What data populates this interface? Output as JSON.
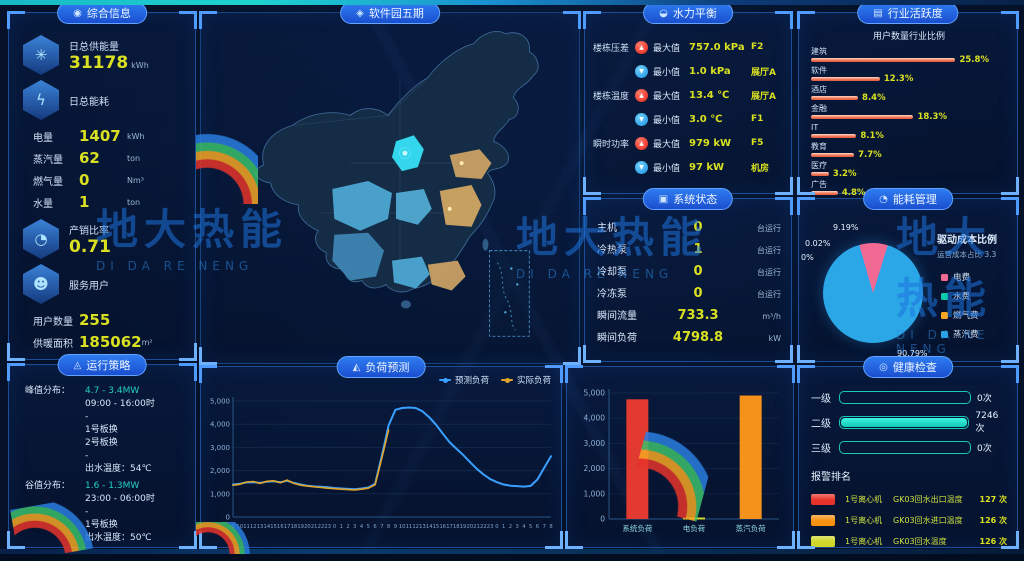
{
  "watermark": {
    "cn": "地大热能",
    "en": "DI DA RE NENG"
  },
  "colors": {
    "accent_yellow": "#d9e021",
    "accent_cyan": "#23d0c4",
    "panel_border": "#1c4d96",
    "max_red": "#e02318",
    "min_blue": "#1e8fe0",
    "bar_salmon": "#f0795a"
  },
  "panels": {
    "summary": {
      "title": "综合信息",
      "icon": "◉",
      "supply": {
        "label": "日总供能量",
        "value": "31178",
        "unit": "kWh"
      },
      "consume_label": "日总能耗",
      "consume_rows": [
        {
          "label": "电量",
          "value": "1407",
          "unit": "kWh"
        },
        {
          "label": "蒸汽量",
          "value": "62",
          "unit": "ton"
        },
        {
          "label": "燃气量",
          "value": "0",
          "unit": "Nm³"
        },
        {
          "label": "水量",
          "value": "1",
          "unit": "ton"
        }
      ],
      "ratio": {
        "label": "产销比率",
        "value": "0.71"
      },
      "users_label": "服务用户",
      "user_rows": [
        {
          "label": "用户数量",
          "value": "255",
          "unit": ""
        },
        {
          "label": "供暖面积",
          "value": "185062",
          "unit": "m²"
        }
      ]
    },
    "strategy": {
      "title": "运行策略",
      "icon": "◬",
      "peak": {
        "label": "峰值分布：",
        "range": "4.7 - 3.4MW",
        "lines": [
          "09:00 - 16:00时",
          "-",
          "1号板换",
          "2号板换",
          "-",
          "出水温度：54℃"
        ]
      },
      "valley": {
        "label": "谷值分布：",
        "range": "1.6 - 1.3MW",
        "lines": [
          "23:00 - 06:00时",
          "-",
          "1号板换",
          "出水温度：50℃"
        ]
      }
    },
    "map": {
      "title": "软件园五期",
      "icon": "◈"
    },
    "forecast": {
      "title": "负荷预测",
      "icon": "◭"
    },
    "hydraulic": {
      "title": "水力平衡",
      "icon": "◒",
      "rows": [
        {
          "group": "楼栋压差",
          "type": "max",
          "label": "最大值",
          "value": "757.0 kPa",
          "tag": "F2"
        },
        {
          "group": "",
          "type": "min",
          "label": "最小值",
          "value": "1.0 kPa",
          "tag": "展厅A"
        },
        {
          "group": "楼栋温度",
          "type": "max",
          "label": "最大值",
          "value": "13.4 ℃",
          "tag": "展厅A"
        },
        {
          "group": "",
          "type": "min",
          "label": "最小值",
          "value": "3.0 ℃",
          "tag": "F1"
        },
        {
          "group": "瞬时功率",
          "type": "max",
          "label": "最大值",
          "value": "979 kW",
          "tag": "F5"
        },
        {
          "group": "",
          "type": "min",
          "label": "最小值",
          "value": "97 kW",
          "tag": "机房"
        }
      ]
    },
    "system": {
      "title": "系统状态",
      "icon": "▣",
      "rows": [
        {
          "label": "主机",
          "value": "0",
          "unit": "台运行"
        },
        {
          "label": "冷热泵",
          "value": "1",
          "unit": "台运行"
        },
        {
          "label": "冷却泵",
          "value": "0",
          "unit": "台运行"
        },
        {
          "label": "冷冻泵",
          "value": "0",
          "unit": "台运行"
        },
        {
          "label": "瞬间流量",
          "value": "733.3",
          "unit": "m³/h"
        },
        {
          "label": "瞬间负荷",
          "value": "4798.8",
          "unit": "kW"
        }
      ]
    },
    "industry": {
      "title": "行业活跃度",
      "icon": "▤",
      "subtitle": "用户数量行业比例"
    },
    "energy_cost": {
      "title": "能耗管理",
      "icon": "◔",
      "center_title": "驱动成本比例",
      "center_sub": "运营成本占比 3.3"
    },
    "health": {
      "title": "健康检查",
      "icon": "◎",
      "levels": [
        {
          "label": "一级",
          "value": "0次",
          "pct": 0
        },
        {
          "label": "二级",
          "value": "7246次",
          "pct": 100
        },
        {
          "label": "三级",
          "value": "0次",
          "pct": 0
        }
      ],
      "alarm_title": "报警排名",
      "alarms": [
        {
          "rank_color": "#e8332a",
          "device": "1号离心机",
          "point": "GK03回水出口温度",
          "count": "127 次"
        },
        {
          "rank_color": "#f5910f",
          "device": "1号离心机",
          "point": "GK03回水进口温度",
          "count": "126 次"
        },
        {
          "rank_color": "#cfd628",
          "device": "1号离心机",
          "point": "GK03回水温度",
          "count": "126 次"
        }
      ]
    }
  },
  "chart_data": [
    {
      "id": "industry",
      "type": "bar",
      "orientation": "horizontal",
      "title": "行业活跃度",
      "subtitle": "用户数量行业比例",
      "unit": "%",
      "xlim": [
        0,
        30
      ],
      "categories": [
        "建筑",
        "软件",
        "酒店",
        "金融",
        "IT",
        "教育",
        "医疗",
        "广告"
      ],
      "values": [
        25.8,
        12.3,
        8.4,
        18.3,
        8.1,
        7.7,
        3.2,
        4.8
      ]
    },
    {
      "id": "energy_cost",
      "type": "pie",
      "title": "能耗管理",
      "slices": [
        {
          "label": "电费",
          "value": 9.19,
          "color": "#f06a93"
        },
        {
          "label": "水费",
          "value": 0.02,
          "color": "#0cc9a7"
        },
        {
          "label": "燃气费",
          "value": 0,
          "color": "#f5a623"
        },
        {
          "label": "蒸汽费",
          "value": 90.79,
          "color": "#2ba7e8"
        }
      ],
      "annotations": [
        "9.19%",
        "0.02%",
        "0%",
        "90.79%"
      ],
      "legend_position": "right"
    },
    {
      "id": "forecast",
      "type": "line",
      "title": "负荷预测",
      "ylim": [
        0,
        5000
      ],
      "yticks": [
        0,
        1000,
        2000,
        3000,
        4000,
        5000
      ],
      "x": [
        "9",
        "10",
        "11",
        "12",
        "13",
        "14",
        "15",
        "16",
        "17",
        "18",
        "19",
        "20",
        "21",
        "22",
        "23",
        "0",
        "1",
        "2",
        "3",
        "4",
        "5",
        "6",
        "7",
        "8",
        "9",
        "10",
        "11",
        "12",
        "13",
        "14",
        "15",
        "16",
        "17",
        "18",
        "19",
        "20",
        "21",
        "22",
        "23",
        "0",
        "1",
        "2",
        "3",
        "4",
        "5",
        "6",
        "7",
        "8"
      ],
      "series": [
        {
          "name": "预测负荷",
          "color": "#3aa0ff",
          "values": [
            1400,
            1430,
            1490,
            1500,
            1470,
            1520,
            1540,
            1500,
            1560,
            1470,
            1400,
            1350,
            1320,
            1300,
            1280,
            1250,
            1230,
            1210,
            1200,
            1230,
            1270,
            1430,
            2650,
            3950,
            4620,
            4700,
            4720,
            4700,
            4560,
            4300,
            3980,
            3600,
            3230,
            2950,
            2680,
            2380,
            2080,
            1840,
            1640,
            1500,
            1400,
            1350,
            1330,
            1310,
            1340,
            1620,
            2120,
            2620
          ]
        },
        {
          "name": "实际负荷",
          "color": "#e0a42a",
          "values": [
            1370,
            1410,
            1510,
            1530,
            1450,
            1540,
            1560,
            1480,
            1590,
            1450,
            1370,
            1330,
            1300,
            1270,
            1240,
            1220,
            1200,
            1180,
            1170,
            1200,
            1240,
            1390,
            2550,
            3750,
            null,
            null,
            null,
            null,
            null,
            null,
            null,
            null,
            null,
            null,
            null,
            null,
            null,
            null,
            null,
            null,
            null,
            null,
            null,
            null,
            null,
            null,
            null,
            null
          ]
        }
      ],
      "legend_position": "top-right",
      "grid": true
    },
    {
      "id": "load",
      "type": "bar",
      "title": "",
      "categories": [
        "系统负荷",
        "电负荷",
        "蒸汽负荷"
      ],
      "values": [
        4750,
        60,
        4900
      ],
      "colors": [
        "#e23a30",
        "#cfd628",
        "#f5921b"
      ],
      "ylim": [
        0,
        5000
      ],
      "yticks": [
        0,
        1000,
        2000,
        3000,
        4000,
        5000
      ]
    },
    {
      "id": "health_levels",
      "type": "bar",
      "orientation": "horizontal",
      "categories": [
        "一级",
        "二级",
        "三级"
      ],
      "values": [
        0,
        7246,
        0
      ],
      "unit": "次"
    }
  ]
}
